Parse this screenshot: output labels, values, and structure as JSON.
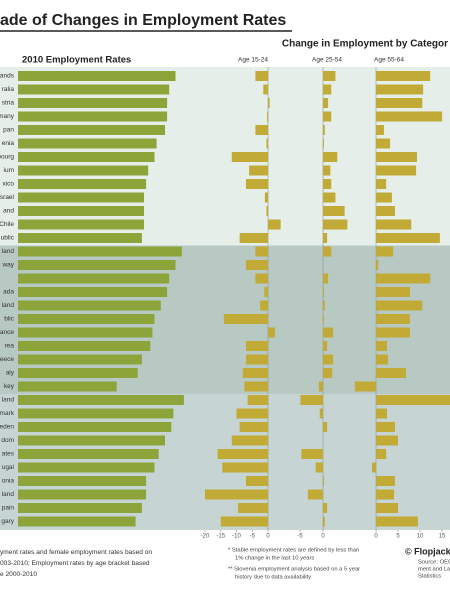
{
  "title": "ade of Changes in Employment Rates",
  "subtitle": "Change in Employment by Categor",
  "footnotes_left": [
    "yment rates and female employment rates based on",
    "003-2010; Employment rates by age bracket based",
    "e 2000-2010"
  ],
  "footnotes_mid": [
    "* Stable employment rates are defined by less than",
    "1% change in the last 10 years",
    "** Slovenia employment analysis based on a 5 year",
    "history due to data availability"
  ],
  "credit": "© Flopjack",
  "source": [
    "Source: OEC",
    "ment and La",
    "Statistics"
  ],
  "chart_data": [
    {
      "type": "bar",
      "orientation": "horizontal",
      "title": "2010 Employment Rates",
      "color": "#8da43b",
      "categories": [
        "ands",
        "ralia",
        "stria",
        "many",
        "pan",
        "enia",
        "bourg",
        "ium",
        "xico",
        "srael",
        "and",
        "Chile",
        "ublic",
        "land",
        "way",
        null,
        "ada",
        "land",
        "blic",
        "ance",
        "rea",
        "eece",
        "aly",
        "key",
        "land",
        "mark",
        "eden",
        "dom",
        "ates",
        "ugal",
        "onia",
        "land",
        "pain",
        "gary"
      ],
      "values": [
        75,
        72,
        71,
        71,
        70,
        66,
        65,
        62,
        61,
        60,
        60,
        60,
        59,
        78,
        75,
        72,
        71,
        68,
        65,
        64,
        63,
        59,
        57,
        47,
        79,
        74,
        73,
        70,
        67,
        65,
        61,
        61,
        59,
        56
      ],
      "xlim": [
        0,
        80
      ]
    },
    {
      "type": "bar",
      "orientation": "horizontal",
      "title": "Age 15-24",
      "color": "#c1aa35",
      "values": [
        -4,
        -1.5,
        0.5,
        -0.3,
        -4,
        -0.5,
        -11.5,
        -6,
        -7,
        -1,
        -0.5,
        4,
        -9,
        -4,
        -7,
        -4,
        -1.2,
        -2.5,
        -14,
        2.2,
        -7,
        -7,
        -8,
        -7.5,
        -6.5,
        -10,
        -9,
        -11.5,
        -16,
        -14.5,
        -7,
        -20,
        -9.5,
        -15
      ],
      "xlim": [
        -20.5,
        5
      ],
      "xticks": [
        -20,
        -15,
        -10,
        -5,
        0
      ]
    },
    {
      "type": "bar",
      "orientation": "horizontal",
      "title": "Age 25-54",
      "color": "#c1aa35",
      "values": [
        2.7,
        1.8,
        1.1,
        1.8,
        0.4,
        0.2,
        3.1,
        1.6,
        1.8,
        2.7,
        4.7,
        5.3,
        0.9,
        1.8,
        0,
        1.1,
        0.2,
        0.4,
        0.2,
        2.2,
        0.9,
        2.2,
        2,
        -0.9,
        -4.9,
        -0.7,
        0.9,
        0,
        -4.7,
        -1.6,
        0.2,
        -3.3,
        0.9,
        0.4
      ],
      "xlim": [
        -5,
        5.5
      ],
      "xticks": [
        -5,
        0
      ]
    },
    {
      "type": "bar",
      "orientation": "horizontal",
      "title": "Age 55-64",
      "color": "#c1aa35",
      "values": [
        12.3,
        10.7,
        10.5,
        15,
        1.8,
        3.2,
        9.3,
        9.1,
        2.3,
        3.6,
        4.3,
        8,
        14.5,
        3.9,
        0.5,
        12.3,
        7.7,
        10.5,
        7.7,
        7.7,
        2.5,
        2.7,
        6.8,
        -4.8,
        16.8,
        2.5,
        4.3,
        5,
        2.3,
        -0.9,
        4.3,
        4.1,
        5,
        9.5
      ],
      "xlim": [
        -5,
        16.8
      ],
      "xticks": [
        0,
        5,
        10,
        15
      ]
    }
  ]
}
